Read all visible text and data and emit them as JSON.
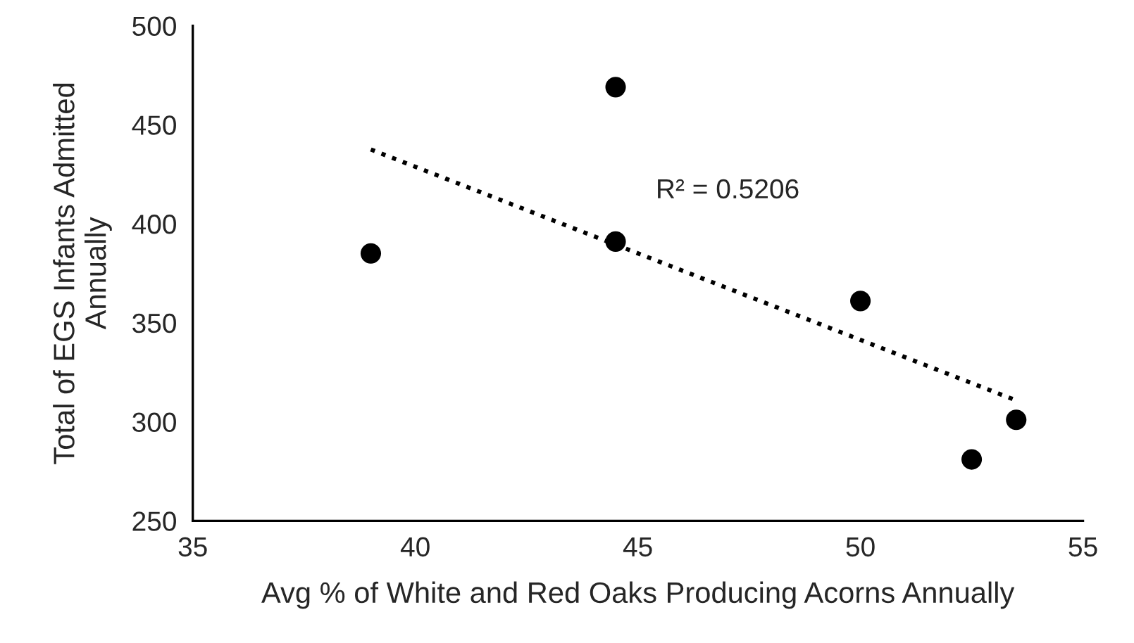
{
  "chart_data": {
    "type": "scatter",
    "xlabel": "Avg % of White and Red Oaks Producing Acorns Annually",
    "ylabel": "Total of EGS Infants Admitted\nAnnually",
    "x": [
      39,
      44.5,
      44.5,
      50,
      52.5,
      53.5
    ],
    "series": [
      {
        "color": "#000000",
        "values": [
          385,
          469,
          391,
          361,
          281,
          301
        ],
        "marker": "circle"
      },
      {
        "type": "line",
        "color": "#000000",
        "x": [
          39,
          53.5
        ],
        "values": [
          437.5,
          310.8
        ],
        "line_style": "dotted",
        "marker": "none"
      }
    ],
    "annotations": [
      "R² = 0.5206"
    ],
    "xlim": [
      35,
      55
    ],
    "xticks": [
      35,
      40,
      45,
      50,
      55
    ],
    "ylim": [
      250,
      500
    ],
    "yticks": [
      250,
      300,
      350,
      400,
      450,
      500
    ],
    "grid": false,
    "legend": false
  }
}
